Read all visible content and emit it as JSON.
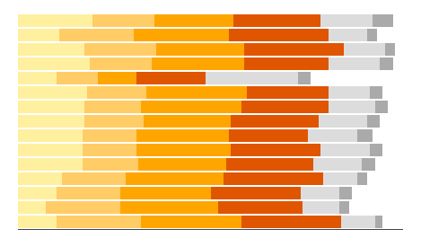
{
  "chart_data": {
    "type": "bar",
    "orientation": "horizontal",
    "stacked": true,
    "grid": false,
    "tick_labels": false,
    "categories": [
      null,
      null,
      null,
      null,
      null,
      null,
      null,
      null,
      null,
      null,
      null,
      null,
      null,
      null,
      null
    ],
    "xlim": [
      0,
      75
    ],
    "series": [
      {
        "color": "#FFF0A0",
        "values": [
          14.5,
          8.0,
          13.0,
          14.0,
          7.5,
          13.5,
          13.0,
          13.0,
          12.5,
          12.5,
          12.5,
          8.5,
          7.5,
          5.5,
          7.5
        ]
      },
      {
        "color": "#FFCC66",
        "values": [
          12.0,
          14.5,
          14.0,
          12.0,
          8.0,
          11.5,
          11.0,
          11.5,
          10.5,
          10.5,
          11.0,
          12.5,
          12.5,
          14.5,
          16.5
        ]
      },
      {
        "color": "#FFA500",
        "values": [
          15.5,
          18.5,
          17.0,
          18.0,
          7.5,
          19.5,
          19.5,
          17.0,
          18.0,
          18.5,
          17.0,
          19.0,
          17.5,
          19.0,
          19.5
        ]
      },
      {
        "color": "#E05500",
        "values": [
          17.0,
          19.5,
          19.5,
          16.5,
          13.5,
          16.0,
          17.0,
          17.0,
          15.5,
          17.5,
          17.0,
          19.5,
          17.5,
          16.5,
          19.5
        ]
      },
      {
        "color": "#DCDCDC",
        "values": [
          10.0,
          7.5,
          8.0,
          10.0,
          18.0,
          8.0,
          9.0,
          9.5,
          9.5,
          9.5,
          9.5,
          6.5,
          7.5,
          7.0,
          6.5
        ]
      },
      {
        "color": "#AAAAAA",
        "values": [
          4.0,
          2.0,
          2.0,
          2.5,
          2.5,
          2.5,
          2.5,
          2.5,
          3.0,
          2.5,
          2.5,
          2.0,
          2.5,
          2.0,
          1.5
        ]
      }
    ]
  }
}
